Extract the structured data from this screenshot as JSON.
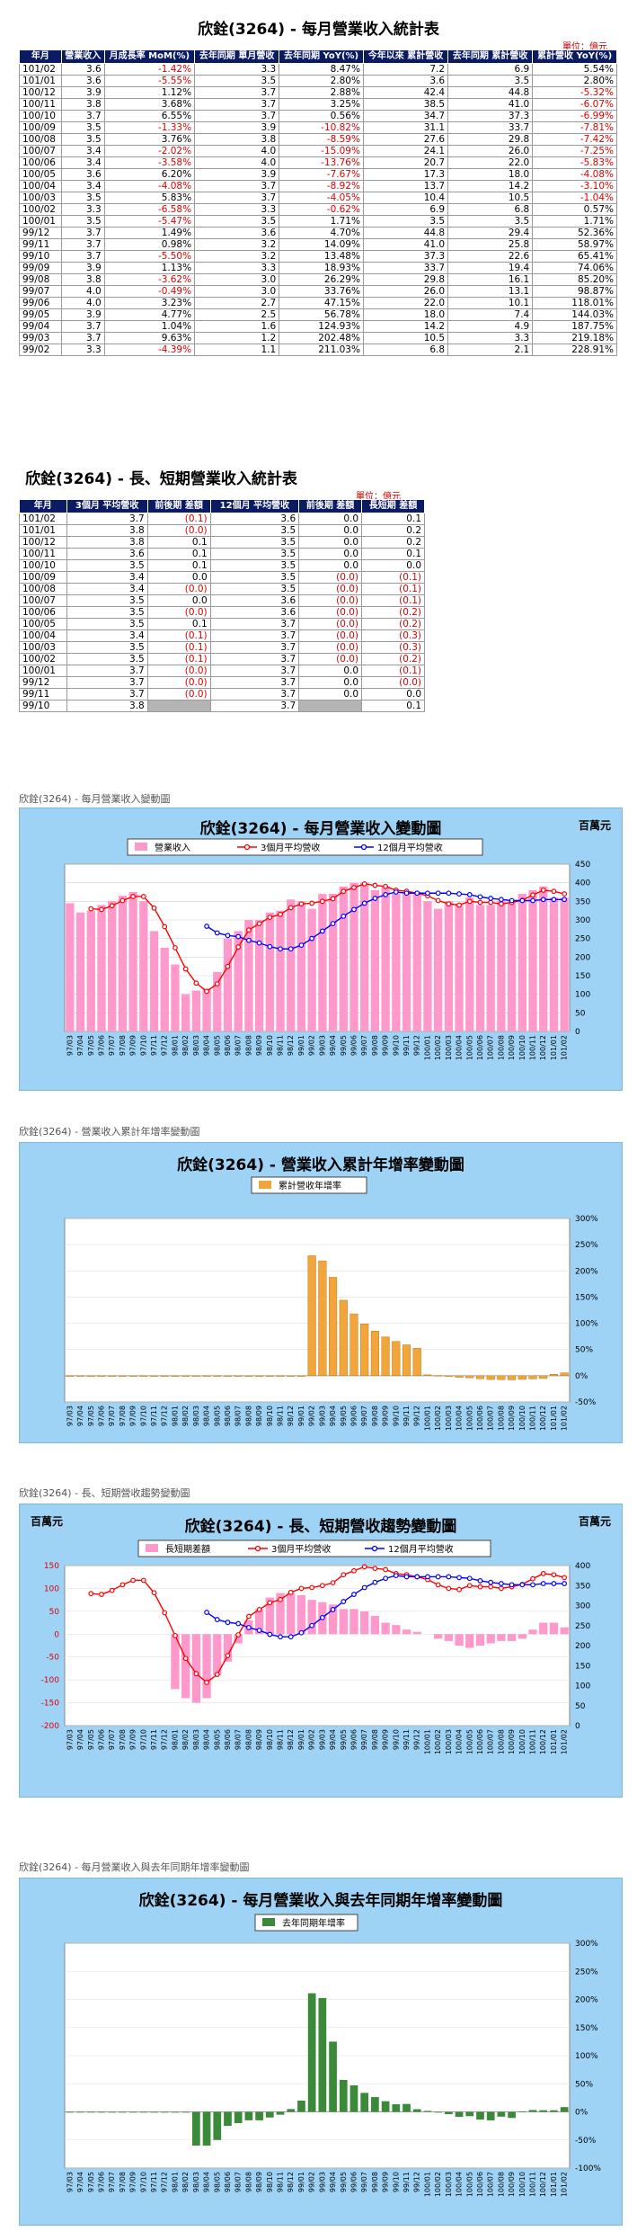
{
  "monthly": {
    "title": "欣銓(3264) - 每月營業收入統計表",
    "unit": "單位：億元",
    "headers": [
      "年月",
      "營業收入",
      "月成長率 MoM(%)",
      "去年同期 單月營收",
      "去年同期 YoY(%)",
      "今年以來 累計營收",
      "去年同期 累計營收",
      "累計營收 YoY(%)"
    ],
    "rows": [
      [
        "101/02",
        "3.6",
        "-1.42%",
        "3.3",
        "8.47%",
        "7.2",
        "6.9",
        "5.54%"
      ],
      [
        "101/01",
        "3.6",
        "-5.55%",
        "3.5",
        "2.80%",
        "3.6",
        "3.5",
        "2.80%"
      ],
      [
        "100/12",
        "3.9",
        "1.12%",
        "3.7",
        "2.88%",
        "42.4",
        "44.8",
        "-5.32%"
      ],
      [
        "100/11",
        "3.8",
        "3.68%",
        "3.7",
        "3.25%",
        "38.5",
        "41.0",
        "-6.07%"
      ],
      [
        "100/10",
        "3.7",
        "6.55%",
        "3.7",
        "0.56%",
        "34.7",
        "37.3",
        "-6.99%"
      ],
      [
        "100/09",
        "3.5",
        "-1.33%",
        "3.9",
        "-10.82%",
        "31.1",
        "33.7",
        "-7.81%"
      ],
      [
        "100/08",
        "3.5",
        "3.76%",
        "3.8",
        "-8.59%",
        "27.6",
        "29.8",
        "-7.42%"
      ],
      [
        "100/07",
        "3.4",
        "-2.02%",
        "4.0",
        "-15.09%",
        "24.1",
        "26.0",
        "-7.25%"
      ],
      [
        "100/06",
        "3.4",
        "-3.58%",
        "4.0",
        "-13.76%",
        "20.7",
        "22.0",
        "-5.83%"
      ],
      [
        "100/05",
        "3.6",
        "6.20%",
        "3.9",
        "-7.67%",
        "17.3",
        "18.0",
        "-4.08%"
      ],
      [
        "100/04",
        "3.4",
        "-4.08%",
        "3.7",
        "-8.92%",
        "13.7",
        "14.2",
        "-3.10%"
      ],
      [
        "100/03",
        "3.5",
        "5.83%",
        "3.7",
        "-4.05%",
        "10.4",
        "10.5",
        "-1.04%"
      ],
      [
        "100/02",
        "3.3",
        "-6.58%",
        "3.3",
        "-0.62%",
        "6.9",
        "6.8",
        "0.57%"
      ],
      [
        "100/01",
        "3.5",
        "-5.47%",
        "3.5",
        "1.71%",
        "3.5",
        "3.5",
        "1.71%"
      ],
      [
        "99/12",
        "3.7",
        "1.49%",
        "3.6",
        "4.70%",
        "44.8",
        "29.4",
        "52.36%"
      ],
      [
        "99/11",
        "3.7",
        "0.98%",
        "3.2",
        "14.09%",
        "41.0",
        "25.8",
        "58.97%"
      ],
      [
        "99/10",
        "3.7",
        "-5.50%",
        "3.2",
        "13.48%",
        "37.3",
        "22.6",
        "65.41%"
      ],
      [
        "99/09",
        "3.9",
        "1.13%",
        "3.3",
        "18.93%",
        "33.7",
        "19.4",
        "74.06%"
      ],
      [
        "99/08",
        "3.8",
        "-3.62%",
        "3.0",
        "26.29%",
        "29.8",
        "16.1",
        "85.20%"
      ],
      [
        "99/07",
        "4.0",
        "-0.49%",
        "3.0",
        "33.76%",
        "26.0",
        "13.1",
        "98.87%"
      ],
      [
        "99/06",
        "4.0",
        "3.23%",
        "2.7",
        "47.15%",
        "22.0",
        "10.1",
        "118.01%"
      ],
      [
        "99/05",
        "3.9",
        "4.77%",
        "2.5",
        "56.78%",
        "18.0",
        "7.4",
        "144.03%"
      ],
      [
        "99/04",
        "3.7",
        "1.04%",
        "1.6",
        "124.93%",
        "14.2",
        "4.9",
        "187.75%"
      ],
      [
        "99/03",
        "3.7",
        "9.63%",
        "1.2",
        "202.48%",
        "10.5",
        "3.3",
        "219.18%"
      ],
      [
        "99/02",
        "3.3",
        "-4.39%",
        "1.1",
        "211.03%",
        "6.8",
        "2.1",
        "228.91%"
      ]
    ]
  },
  "longshort": {
    "title": "欣銓(3264) - 長、短期營業收入統計表",
    "unit": "單位：億元",
    "headers": [
      "年月",
      "3個月 平均營收",
      "前後期 差額",
      "12個月 平均營收",
      "前後期 差額",
      "長短期 差額"
    ],
    "rows": [
      [
        "101/02",
        "3.7",
        "(0.1)",
        "3.6",
        "0.0",
        "0.1"
      ],
      [
        "101/01",
        "3.8",
        "(0.0)",
        "3.5",
        "0.0",
        "0.2"
      ],
      [
        "100/12",
        "3.8",
        "0.1",
        "3.5",
        "0.0",
        "0.2"
      ],
      [
        "100/11",
        "3.6",
        "0.1",
        "3.5",
        "0.0",
        "0.1"
      ],
      [
        "100/10",
        "3.5",
        "0.1",
        "3.5",
        "0.0",
        "0.0"
      ],
      [
        "100/09",
        "3.4",
        "0.0",
        "3.5",
        "(0.0)",
        "(0.1)"
      ],
      [
        "100/08",
        "3.4",
        "(0.0)",
        "3.5",
        "(0.0)",
        "(0.1)"
      ],
      [
        "100/07",
        "3.5",
        "0.0",
        "3.6",
        "(0.0)",
        "(0.1)"
      ],
      [
        "100/06",
        "3.5",
        "(0.0)",
        "3.6",
        "(0.0)",
        "(0.2)"
      ],
      [
        "100/05",
        "3.5",
        "0.1",
        "3.7",
        "(0.0)",
        "(0.2)"
      ],
      [
        "100/04",
        "3.4",
        "(0.1)",
        "3.7",
        "(0.0)",
        "(0.3)"
      ],
      [
        "100/03",
        "3.5",
        "(0.1)",
        "3.7",
        "(0.0)",
        "(0.3)"
      ],
      [
        "100/02",
        "3.5",
        "(0.1)",
        "3.7",
        "(0.0)",
        "(0.2)"
      ],
      [
        "100/01",
        "3.7",
        "(0.0)",
        "3.7",
        "0.0",
        "(0.1)"
      ],
      [
        "99/12",
        "3.7",
        "(0.0)",
        "3.7",
        "0.0",
        "(0.0)"
      ],
      [
        "99/11",
        "3.7",
        "(0.0)",
        "3.7",
        "0.0",
        "0.0"
      ],
      [
        "99/10",
        "3.8",
        "",
        "3.7",
        "",
        "0.1"
      ]
    ]
  },
  "captions": {
    "c1": "欣銓(3264) - 每月營業收入變動圖",
    "c2": "欣銓(3264) -   營業收入累計年增率變動圖",
    "c3": "欣銓(3264) -  長、短期營收趨勢變動圖",
    "c4": "欣銓(3264) -  每月營業收入與去年同期年增率變動圖"
  },
  "chart_data": [
    {
      "type": "bar",
      "title": "欣銓(3264) - 每月營業收入變動圖",
      "corner_label": "百萬元",
      "ylim": [
        0,
        450
      ],
      "yticks": [
        0,
        50,
        100,
        150,
        200,
        250,
        300,
        350,
        400,
        450
      ],
      "legend_position": "top",
      "colors": {
        "bar": "#ff99cc",
        "line3": "#ff0000",
        "line12": "#0000ff"
      },
      "categories": [
        "97/03",
        "97/04",
        "97/05",
        "97/06",
        "97/07",
        "97/08",
        "97/09",
        "97/10",
        "97/11",
        "97/12",
        "98/01",
        "98/02",
        "98/03",
        "98/04",
        "98/05",
        "98/06",
        "98/07",
        "98/08",
        "98/09",
        "98/10",
        "98/11",
        "98/12",
        "99/01",
        "99/02",
        "99/03",
        "99/04",
        "99/05",
        "99/06",
        "99/07",
        "99/08",
        "99/09",
        "99/10",
        "99/11",
        "99/12",
        "100/01",
        "100/02",
        "100/03",
        "100/04",
        "100/05",
        "100/06",
        "100/07",
        "100/08",
        "100/09",
        "100/10",
        "100/11",
        "100/12",
        "101/01",
        "101/02"
      ],
      "series": [
        {
          "name": "營業收入",
          "type": "bar",
          "values": [
            345,
            320,
            325,
            340,
            350,
            365,
            375,
            350,
            270,
            225,
            180,
            100,
            110,
            115,
            160,
            250,
            270,
            300,
            300,
            320,
            325,
            355,
            350,
            330,
            370,
            370,
            390,
            400,
            400,
            380,
            390,
            370,
            370,
            375,
            350,
            330,
            350,
            340,
            360,
            340,
            340,
            350,
            350,
            370,
            380,
            390,
            360,
            360
          ]
        },
        {
          "name": "3個月平均營收",
          "type": "line",
          "values": [
            null,
            null,
            330,
            328,
            338,
            352,
            363,
            363,
            332,
            282,
            225,
            168,
            130,
            108,
            128,
            175,
            227,
            273,
            290,
            307,
            315,
            333,
            343,
            345,
            350,
            357,
            377,
            387,
            397,
            393,
            390,
            380,
            377,
            372,
            365,
            352,
            343,
            340,
            350,
            347,
            347,
            343,
            347,
            353,
            367,
            380,
            377,
            370
          ]
        },
        {
          "name": "12個月平均營收",
          "type": "line",
          "values": [
            null,
            null,
            null,
            null,
            null,
            null,
            null,
            null,
            null,
            null,
            null,
            null,
            null,
            283,
            265,
            258,
            255,
            245,
            238,
            228,
            222,
            222,
            232,
            250,
            270,
            290,
            310,
            328,
            345,
            358,
            368,
            375,
            372,
            372,
            372,
            372,
            372,
            370,
            368,
            362,
            358,
            355,
            352,
            352,
            352,
            355,
            355,
            355
          ]
        }
      ]
    },
    {
      "type": "bar",
      "title": "欣銓(3264) -  營業收入累計年增率變動圖",
      "ylim": [
        -50,
        300
      ],
      "yticks": [
        "-50%",
        "0%",
        "50%",
        "100%",
        "150%",
        "200%",
        "250%",
        "300%"
      ],
      "legend_position": "top",
      "colors": {
        "bar": "#f2a53a"
      },
      "categories": [
        "97/03",
        "97/04",
        "97/05",
        "97/06",
        "97/07",
        "97/08",
        "97/09",
        "97/10",
        "97/11",
        "97/12",
        "98/01",
        "98/02",
        "98/03",
        "98/04",
        "98/05",
        "98/06",
        "98/07",
        "98/08",
        "98/09",
        "98/10",
        "98/11",
        "98/12",
        "99/01",
        "99/02",
        "99/03",
        "99/04",
        "99/05",
        "99/06",
        "99/07",
        "99/08",
        "99/09",
        "99/10",
        "99/11",
        "99/12",
        "100/01",
        "100/02",
        "100/03",
        "100/04",
        "100/05",
        "100/06",
        "100/07",
        "100/08",
        "100/09",
        "100/10",
        "100/11",
        "100/12",
        "101/01",
        "101/02"
      ],
      "series": [
        {
          "name": "累計營收年增率",
          "values": [
            0,
            0,
            0,
            0,
            0,
            0,
            0,
            0,
            0,
            0,
            0,
            0,
            0,
            0,
            0,
            0,
            0,
            0,
            0,
            0,
            0,
            0,
            0,
            228.91,
            219.18,
            187.75,
            144.03,
            118.01,
            98.87,
            85.2,
            74.06,
            65.41,
            58.97,
            52.36,
            1.71,
            0.57,
            -1.04,
            -3.1,
            -4.08,
            -5.83,
            -7.25,
            -7.42,
            -7.81,
            -6.99,
            -6.07,
            -5.32,
            2.8,
            5.54
          ]
        }
      ]
    },
    {
      "type": "bar",
      "title": "欣銓(3264) -  長、短期營收趨勢變動圖",
      "corner_labels": [
        "百萬元",
        "百萬元"
      ],
      "ylim_left": [
        -200,
        150
      ],
      "ylim_right": [
        0,
        400
      ],
      "yticks_left": [
        -200,
        -150,
        -100,
        -50,
        0,
        50,
        100,
        150
      ],
      "yticks_right": [
        0,
        50,
        100,
        150,
        200,
        250,
        300,
        350,
        400
      ],
      "legend_position": "top",
      "colors": {
        "bar": "#ff99cc",
        "line3": "#ff0000",
        "line12": "#0000ff"
      },
      "categories": [
        "97/03",
        "97/04",
        "97/05",
        "97/06",
        "97/07",
        "97/08",
        "97/09",
        "97/10",
        "97/11",
        "97/12",
        "98/01",
        "98/02",
        "98/03",
        "98/04",
        "98/05",
        "98/06",
        "98/07",
        "98/08",
        "98/09",
        "98/10",
        "98/11",
        "98/12",
        "99/01",
        "99/02",
        "99/03",
        "99/04",
        "99/05",
        "99/06",
        "99/07",
        "99/08",
        "99/09",
        "99/10",
        "99/11",
        "99/12",
        "100/01",
        "100/02",
        "100/03",
        "100/04",
        "100/05",
        "100/06",
        "100/07",
        "100/08",
        "100/09",
        "100/10",
        "100/11",
        "100/12",
        "101/01",
        "101/02"
      ],
      "series": [
        {
          "name": "長短期差額",
          "axis": "left",
          "values": [
            0,
            0,
            0,
            0,
            0,
            0,
            0,
            0,
            0,
            0,
            -120,
            -140,
            -150,
            -140,
            -90,
            -60,
            -20,
            30,
            55,
            80,
            90,
            90,
            85,
            75,
            70,
            65,
            55,
            55,
            50,
            40,
            25,
            20,
            10,
            5,
            0,
            -10,
            -15,
            -25,
            -30,
            -25,
            -20,
            -15,
            -15,
            -10,
            10,
            25,
            25,
            15
          ]
        },
        {
          "name": "3個月平均營收",
          "axis": "right",
          "values": [
            null,
            null,
            330,
            328,
            338,
            352,
            363,
            363,
            332,
            282,
            225,
            168,
            130,
            108,
            128,
            175,
            227,
            273,
            290,
            307,
            315,
            333,
            343,
            345,
            350,
            357,
            377,
            387,
            397,
            393,
            390,
            380,
            377,
            372,
            365,
            352,
            343,
            340,
            350,
            347,
            347,
            343,
            347,
            353,
            367,
            380,
            377,
            370
          ]
        },
        {
          "name": "12個月平均營收",
          "axis": "right",
          "values": [
            null,
            null,
            null,
            null,
            null,
            null,
            null,
            null,
            null,
            null,
            null,
            null,
            null,
            283,
            265,
            258,
            255,
            245,
            238,
            228,
            222,
            222,
            232,
            250,
            270,
            290,
            310,
            328,
            345,
            358,
            368,
            375,
            372,
            372,
            372,
            372,
            372,
            370,
            368,
            362,
            358,
            355,
            352,
            352,
            352,
            355,
            355,
            355
          ]
        }
      ]
    },
    {
      "type": "bar",
      "title": "欣銓(3264) -  每月營業收入與去年同期年增率變動圖",
      "ylim": [
        -100,
        300
      ],
      "yticks": [
        "-100%",
        "-50%",
        "0%",
        "50%",
        "100%",
        "150%",
        "200%",
        "250%",
        "300%"
      ],
      "legend_position": "top",
      "colors": {
        "bar": "#3a8a3a"
      },
      "categories": [
        "97/03",
        "97/04",
        "97/05",
        "97/06",
        "97/07",
        "97/08",
        "97/09",
        "97/10",
        "97/11",
        "97/12",
        "98/01",
        "98/02",
        "98/03",
        "98/04",
        "98/05",
        "98/06",
        "98/07",
        "98/08",
        "98/09",
        "98/10",
        "98/11",
        "98/12",
        "99/01",
        "99/02",
        "99/03",
        "99/04",
        "99/05",
        "99/06",
        "99/07",
        "99/08",
        "99/09",
        "99/10",
        "99/11",
        "99/12",
        "100/01",
        "100/02",
        "100/03",
        "100/04",
        "100/05",
        "100/06",
        "100/07",
        "100/08",
        "100/09",
        "100/10",
        "100/11",
        "100/12",
        "101/01",
        "101/02"
      ],
      "series": [
        {
          "name": "去年同期年增率",
          "values": [
            0,
            0,
            0,
            0,
            0,
            0,
            0,
            0,
            0,
            0,
            0,
            0,
            -60,
            -60,
            -50,
            -25,
            -20,
            -15,
            -15,
            -10,
            -5,
            5,
            20,
            211.03,
            202.48,
            124.93,
            56.78,
            47.15,
            33.76,
            26.29,
            18.93,
            13.48,
            14.09,
            4.7,
            1.71,
            -0.62,
            -4.05,
            -8.92,
            -7.67,
            -13.76,
            -15.09,
            -8.59,
            -10.82,
            0.56,
            3.25,
            2.88,
            2.8,
            8.47
          ]
        }
      ]
    }
  ]
}
